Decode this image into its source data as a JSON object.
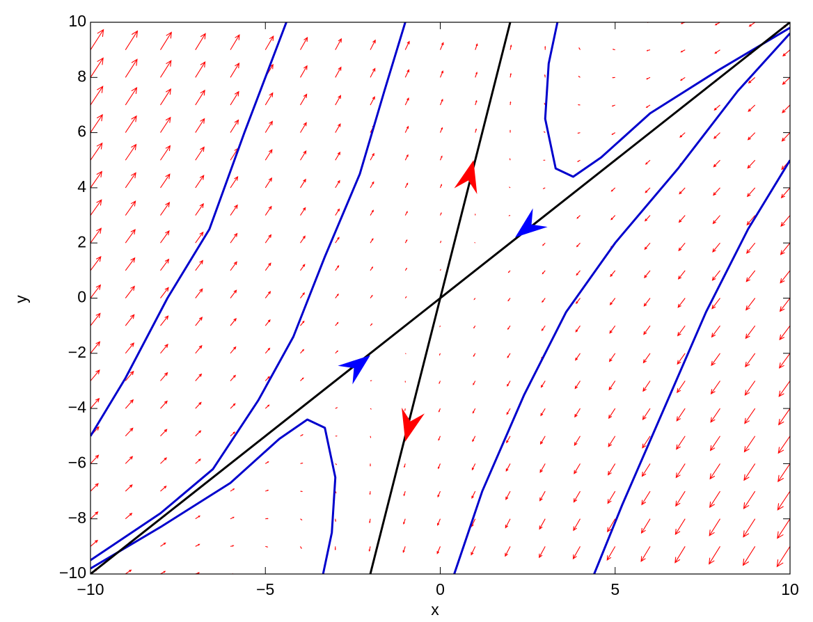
{
  "chart_data": {
    "type": "quiver",
    "xlabel": "x",
    "ylabel": "y",
    "xlim": [
      -10,
      10
    ],
    "ylim": [
      -10,
      10
    ],
    "xticks": [
      {
        "value": -10,
        "label": "−10"
      },
      {
        "value": -5,
        "label": "−5"
      },
      0,
      5,
      10
    ],
    "yticks": [
      {
        "value": -10,
        "label": "−10"
      },
      {
        "value": -8,
        "label": "−8"
      },
      {
        "value": -6,
        "label": "−6"
      },
      {
        "value": -4,
        "label": "−4"
      },
      {
        "value": -2,
        "label": "−2"
      },
      0,
      2,
      4,
      6,
      8,
      10
    ],
    "quiver": {
      "color": "#ff0000",
      "x": [
        -10,
        -9,
        -8,
        -7,
        -6,
        -5,
        -4,
        -3,
        -2,
        -1,
        0,
        1,
        2,
        3,
        4,
        5,
        6,
        7,
        8,
        9,
        10
      ],
      "y": [
        -10,
        -9,
        -8,
        -7,
        -6,
        -5,
        -4,
        -3,
        -2,
        -1,
        0,
        1,
        2,
        3,
        4,
        5,
        6,
        7,
        8,
        9,
        10
      ],
      "u": [
        [
          10,
          8.5,
          7,
          5.5,
          4,
          2.5,
          1,
          -0.5,
          -2,
          -3.5,
          -5,
          -6.5,
          -8,
          -9.5,
          -11,
          -12.5,
          -14,
          -15.5,
          -17,
          -18.5,
          -20
        ],
        [
          10.5,
          9,
          7.5,
          6,
          4.5,
          3,
          1.5,
          0,
          -1.5,
          -3,
          -4.5,
          -6,
          -7.5,
          -9,
          -10.5,
          -12,
          -13.5,
          -15,
          -16.5,
          -18,
          -19.5
        ],
        [
          11,
          9.5,
          8,
          6.5,
          5,
          3.5,
          2,
          0.5,
          -1,
          -2.5,
          -4,
          -5.5,
          -7,
          -8.5,
          -10,
          -11.5,
          -13,
          -14.5,
          -16,
          -17.5,
          -19
        ],
        [
          11.5,
          10,
          8.5,
          7,
          5.5,
          4,
          2.5,
          1,
          -0.5,
          -2,
          -3.5,
          -5,
          -6.5,
          -8,
          -9.5,
          -11,
          -12.5,
          -14,
          -15.5,
          -17,
          -18.5
        ],
        [
          12,
          10.5,
          9,
          7.5,
          6,
          4.5,
          3,
          1.5,
          0,
          -1.5,
          -3,
          -4.5,
          -6,
          -7.5,
          -9,
          -10.5,
          -12,
          -13.5,
          -15,
          -16.5,
          -18
        ],
        [
          12.5,
          11,
          9.5,
          8,
          6.5,
          5,
          3.5,
          2,
          0.5,
          -1,
          -2.5,
          -4,
          -5.5,
          -7,
          -8.5,
          -10,
          -11.5,
          -13,
          -14.5,
          -16,
          -17.5
        ],
        [
          13,
          11.5,
          10,
          8.5,
          7,
          5.5,
          4,
          2.5,
          1,
          -0.5,
          -2,
          -3.5,
          -5,
          -6.5,
          -8,
          -9.5,
          -11,
          -12.5,
          -14,
          -15.5,
          -17
        ],
        [
          13.5,
          12,
          10.5,
          9,
          7.5,
          6,
          4.5,
          3,
          1.5,
          0,
          -1.5,
          -3,
          -4.5,
          -6,
          -7.5,
          -9,
          -10.5,
          -12,
          -13.5,
          -15,
          -16.5
        ],
        [
          14,
          12.5,
          11,
          9.5,
          8,
          6.5,
          5,
          3.5,
          2,
          0.5,
          -1,
          -2.5,
          -4,
          -5.5,
          -7,
          -8.5,
          -10,
          -11.5,
          -13,
          -14.5,
          -16
        ],
        [
          14.5,
          13,
          11.5,
          10,
          8.5,
          7,
          5.5,
          4,
          2.5,
          1,
          -0.5,
          -2,
          -3.5,
          -5,
          -6.5,
          -8,
          -9.5,
          -11,
          -12.5,
          -14,
          -15.5
        ],
        [
          15,
          13.5,
          12,
          10.5,
          9,
          7.5,
          6,
          4.5,
          3,
          1.5,
          0,
          -1.5,
          -3,
          -4.5,
          -6,
          -7.5,
          -9,
          -10.5,
          -12,
          -13.5,
          -15
        ],
        [
          15.5,
          14,
          12.5,
          11,
          9.5,
          8,
          6.5,
          5,
          3.5,
          2,
          0.5,
          -1,
          -2.5,
          -4,
          -5.5,
          -7,
          -8.5,
          -10,
          -11.5,
          -13,
          -14.5
        ],
        [
          16,
          14.5,
          13,
          11.5,
          10,
          8.5,
          7,
          5.5,
          4,
          2.5,
          1,
          -0.5,
          -2,
          -3.5,
          -5,
          -6.5,
          -8,
          -9.5,
          -11,
          -12.5,
          -14
        ],
        [
          16.5,
          15,
          13.5,
          12,
          10.5,
          9,
          7.5,
          6,
          4.5,
          3,
          1.5,
          0,
          -1.5,
          -3,
          -4.5,
          -6,
          -7.5,
          -9,
          -10.5,
          -12,
          -13.5
        ],
        [
          17,
          15.5,
          14,
          12.5,
          11,
          9.5,
          8,
          6.5,
          5,
          3.5,
          2,
          0.5,
          -1,
          -2.5,
          -4,
          -5.5,
          -7,
          -8.5,
          -10,
          -11.5,
          -13
        ],
        [
          17.5,
          16,
          14.5,
          13,
          11.5,
          10,
          8.5,
          7,
          5.5,
          4,
          2.5,
          1,
          -0.5,
          -2,
          -3.5,
          -5,
          -6.5,
          -8,
          -9.5,
          -11,
          -12.5
        ],
        [
          18,
          16.5,
          15,
          13.5,
          12,
          10.5,
          9,
          7.5,
          6,
          4.5,
          3,
          1.5,
          0,
          -1.5,
          -3,
          -4.5,
          -6,
          -7.5,
          -9,
          -10.5,
          -12
        ],
        [
          18.5,
          17,
          15.5,
          14,
          12.5,
          11,
          9.5,
          8,
          6.5,
          5,
          3.5,
          2,
          0.5,
          -1,
          -2.5,
          -4,
          -5.5,
          -7,
          -8.5,
          -10,
          -11.5
        ],
        [
          19,
          17.5,
          16,
          14.5,
          13,
          11.5,
          10,
          8.5,
          7,
          5.5,
          4,
          2.5,
          1,
          -0.5,
          -2,
          -3.5,
          -5,
          -6.5,
          -8,
          -9.5,
          -11
        ],
        [
          19.5,
          18,
          16.5,
          15,
          13.5,
          12,
          10.5,
          9,
          7.5,
          6,
          4.5,
          3,
          1.5,
          0,
          -1.5,
          -3,
          -4.5,
          -6,
          -7.5,
          -9,
          -10.5
        ],
        [
          20,
          18.5,
          17,
          15.5,
          14,
          12.5,
          11,
          9.5,
          8,
          6.5,
          5,
          3.5,
          2,
          0.5,
          -1,
          -2.5,
          -4,
          -5.5,
          -7,
          -8.5,
          -10
        ]
      ],
      "v": [
        [
          10,
          7.5,
          5,
          2.5,
          0,
          -2.5,
          -5,
          -7.5,
          -10,
          -12.5,
          -15,
          -17.5,
          -20,
          -22.5,
          -25,
          -27.5,
          -30,
          -32.5,
          -35,
          -37.5,
          -40
        ],
        [
          11.5,
          9,
          6.5,
          4,
          1.5,
          -1,
          -3.5,
          -6,
          -8.5,
          -11,
          -13.5,
          -16,
          -18.5,
          -21,
          -23.5,
          -26,
          -28.5,
          -31,
          -33.5,
          -36,
          -38.5
        ],
        [
          13,
          10.5,
          8,
          5.5,
          3,
          0.5,
          -2,
          -4.5,
          -7,
          -9.5,
          -12,
          -14.5,
          -17,
          -19.5,
          -22,
          -24.5,
          -27,
          -29.5,
          -32,
          -34.5,
          -37
        ],
        [
          14.5,
          12,
          9.5,
          7,
          4.5,
          2,
          -0.5,
          -3,
          -5.5,
          -8,
          -10.5,
          -13,
          -15.5,
          -18,
          -20.5,
          -23,
          -25.5,
          -28,
          -30.5,
          -33,
          -35.5
        ],
        [
          16,
          13.5,
          11,
          8.5,
          6,
          3.5,
          1,
          -1.5,
          -4,
          -6.5,
          -9,
          -11.5,
          -14,
          -16.5,
          -19,
          -21.5,
          -24,
          -26.5,
          -29,
          -31.5,
          -34
        ],
        [
          17.5,
          15,
          12.5,
          10,
          7.5,
          5,
          2.5,
          0,
          -2.5,
          -5,
          -7.5,
          -10,
          -12.5,
          -15,
          -17.5,
          -20,
          -22.5,
          -25,
          -27.5,
          -30,
          -32.5
        ],
        [
          19,
          16.5,
          14,
          11.5,
          9,
          6.5,
          4,
          1.5,
          -1,
          -3.5,
          -6,
          -8.5,
          -11,
          -13.5,
          -16,
          -18.5,
          -21,
          -23.5,
          -26,
          -28.5,
          -31
        ],
        [
          20.5,
          18,
          15.5,
          13,
          10.5,
          8,
          5.5,
          3,
          0.5,
          -2,
          -4.5,
          -7,
          -9.5,
          -12,
          -14.5,
          -17,
          -19.5,
          -22,
          -24.5,
          -27,
          -29.5
        ],
        [
          22,
          19.5,
          17,
          14.5,
          12,
          9.5,
          7,
          4.5,
          2,
          -0.5,
          -3,
          -5.5,
          -8,
          -10.5,
          -13,
          -15.5,
          -18,
          -20.5,
          -23,
          -25.5,
          -28
        ],
        [
          23.5,
          21,
          18.5,
          16,
          13.5,
          11,
          8.5,
          6,
          3.5,
          1,
          -1.5,
          -4,
          -6.5,
          -9,
          -11.5,
          -14,
          -16.5,
          -19,
          -21.5,
          -24,
          -26.5
        ],
        [
          25,
          22.5,
          20,
          17.5,
          15,
          12.5,
          10,
          7.5,
          5,
          2.5,
          0,
          -2.5,
          -5,
          -7.5,
          -10,
          -12.5,
          -15,
          -17.5,
          -20,
          -22.5,
          -25
        ],
        [
          26.5,
          24,
          21.5,
          19,
          16.5,
          14,
          11.5,
          9,
          6.5,
          4,
          1.5,
          -1,
          -3.5,
          -6,
          -8.5,
          -11,
          -13.5,
          -16,
          -18.5,
          -21,
          -23.5
        ],
        [
          28,
          25.5,
          23,
          20.5,
          18,
          15.5,
          13,
          10.5,
          8,
          5.5,
          3,
          0.5,
          -2,
          -4.5,
          -7,
          -9.5,
          -12,
          -14.5,
          -17,
          -19.5,
          -22
        ],
        [
          29.5,
          27,
          24.5,
          22,
          19.5,
          17,
          14.5,
          12,
          9.5,
          7,
          4.5,
          2,
          -0.5,
          -3,
          -5.5,
          -8,
          -10.5,
          -13,
          -15.5,
          -18,
          -20.5
        ],
        [
          31,
          28.5,
          26,
          23.5,
          21,
          18.5,
          16,
          13.5,
          11,
          8.5,
          6,
          3.5,
          1,
          -1.5,
          -4,
          -6.5,
          -9,
          -11.5,
          -14,
          -16.5,
          -19
        ],
        [
          32.5,
          30,
          27.5,
          25,
          22.5,
          20,
          17.5,
          15,
          12.5,
          10,
          7.5,
          5,
          2.5,
          0,
          -2.5,
          -5,
          -7.5,
          -10,
          -12.5,
          -15,
          -17.5
        ],
        [
          34,
          31.5,
          29,
          26.5,
          24,
          21.5,
          19,
          16.5,
          14,
          11.5,
          9,
          6.5,
          4,
          1.5,
          -1,
          -3.5,
          -6,
          -8.5,
          -11,
          -13.5,
          -16
        ],
        [
          35.5,
          33,
          30.5,
          28,
          25.5,
          23,
          20.5,
          18,
          15.5,
          13,
          10.5,
          8,
          5.5,
          3,
          0.5,
          -2,
          -4.5,
          -7,
          -9.5,
          -12,
          -14.5
        ],
        [
          37,
          34.5,
          32,
          29.5,
          27,
          24.5,
          22,
          19.5,
          17,
          14.5,
          12,
          9.5,
          7,
          4.5,
          2,
          -0.5,
          -3,
          -5.5,
          -8,
          -10.5,
          -13
        ],
        [
          38.5,
          36,
          33.5,
          31,
          28.5,
          26,
          23.5,
          21,
          18.5,
          16,
          13.5,
          11,
          8.5,
          6,
          3.5,
          1,
          -1.5,
          -4,
          -6.5,
          -9,
          -11.5
        ],
        [
          40,
          37.5,
          35,
          32.5,
          30,
          27.5,
          25,
          22.5,
          20,
          17.5,
          15,
          12.5,
          10,
          7.5,
          5,
          2.5,
          0,
          -2.5,
          -5,
          -7.5,
          -10
        ]
      ]
    },
    "series": [
      {
        "color": "#0000cc",
        "x": [
          -10,
          -9,
          -7.8,
          -6.6,
          -5.6,
          -4.4
        ],
        "y": [
          -5,
          -2.9,
          0,
          2.5,
          6,
          10
        ]
      },
      {
        "color": "#0000cc",
        "x": [
          -10,
          -8,
          -6.5,
          -5.2,
          -4.2,
          -3.3,
          -2.3,
          -1.6,
          -1.0
        ],
        "y": [
          -9.5,
          -7.8,
          -6.2,
          -3.7,
          -1.4,
          1.5,
          4.5,
          7.5,
          10
        ]
      },
      {
        "color": "#0000cc",
        "x": [
          -10,
          -8,
          -6,
          -4.6,
          -3.8,
          -3.3,
          -3.0,
          -3.1,
          -3.35
        ],
        "y": [
          -9.8,
          -8.3,
          -6.7,
          -5.1,
          -4.4,
          -4.7,
          -6.5,
          -8.5,
          -10
        ]
      },
      {
        "color": "#0000cc",
        "x": [
          3.35,
          3.1,
          3.0,
          3.3,
          3.8,
          4.6,
          6,
          8,
          10
        ],
        "y": [
          10,
          8.5,
          6.5,
          4.7,
          4.4,
          5.1,
          6.7,
          8.3,
          9.8
        ]
      },
      {
        "color": "#0000cc",
        "x": [
          0.4,
          1.2,
          2.4,
          3.6,
          5,
          6.8,
          8.5,
          10
        ],
        "y": [
          -10,
          -7,
          -3.5,
          -0.5,
          2,
          4.7,
          7.5,
          9.6
        ]
      },
      {
        "color": "#0000cc",
        "x": [
          4.4,
          5.2,
          6.4,
          7.6,
          8.8,
          10
        ],
        "y": [
          -10,
          -7.5,
          -4,
          -0.5,
          2.5,
          5
        ]
      },
      {
        "color": "#000000",
        "x": [
          -10,
          10
        ],
        "y": [
          -10,
          10
        ]
      },
      {
        "color": "#000000",
        "x": [
          -2,
          2
        ],
        "y": [
          -10,
          10
        ]
      }
    ],
    "arrows": [
      {
        "x": 0.95,
        "y": 5.0,
        "dx": 1,
        "dy": 5,
        "color": "#ff0000"
      },
      {
        "x": -1.0,
        "y": -5.2,
        "dx": -1,
        "dy": -5,
        "color": "#ff0000"
      },
      {
        "x": 2.14,
        "y": 2.2,
        "dx": -1,
        "dy": -1,
        "color": "#0000ff"
      },
      {
        "x": -2.0,
        "y": -2.07,
        "dx": 1,
        "dy": 1,
        "color": "#0000ff"
      }
    ]
  }
}
